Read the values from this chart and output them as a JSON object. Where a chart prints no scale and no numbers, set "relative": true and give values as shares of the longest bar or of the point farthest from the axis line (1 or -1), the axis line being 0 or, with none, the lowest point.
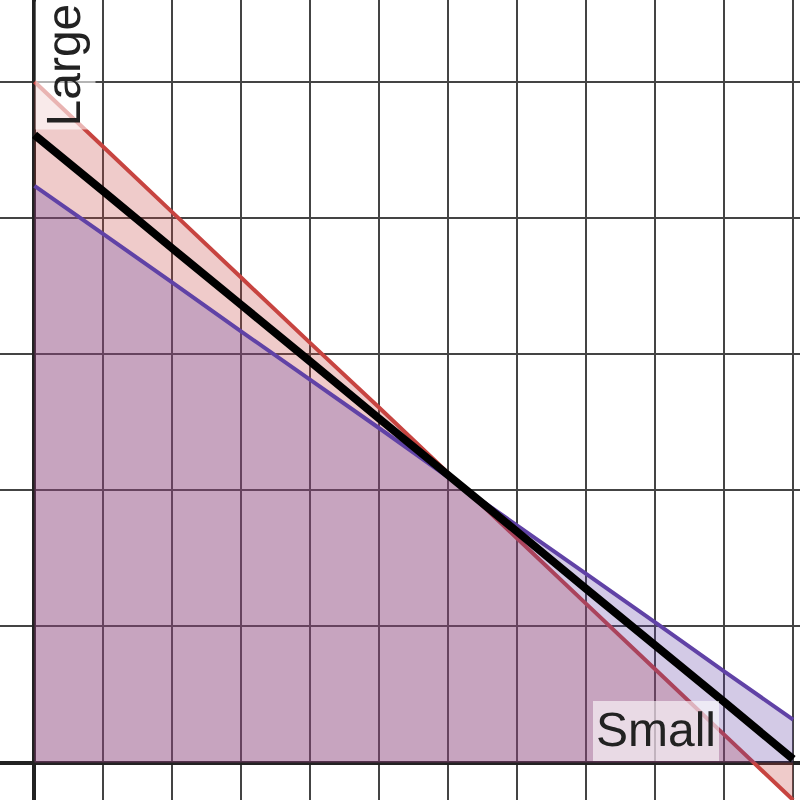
{
  "chart_data": {
    "type": "line",
    "relative": true,
    "xlabel": "Small",
    "ylabel": "Large",
    "categories": [
      null,
      null,
      null,
      null,
      null,
      null,
      null,
      null,
      null,
      null,
      null,
      null
    ],
    "grid": true,
    "series": [
      {
        "type": "area",
        "color": "#c74440",
        "values": [
          1,
          0.904,
          0.808,
          0.712,
          0.616,
          0.521,
          0.425,
          0.329,
          0.233,
          0.137,
          0.041,
          -0.055
        ]
      },
      {
        "type": "area",
        "color": "#6042a6",
        "values": [
          0.847,
          0.776,
          0.705,
          0.633,
          0.562,
          0.491,
          0.419,
          0.348,
          0.277,
          0.206,
          0.134,
          0.063
        ]
      },
      {
        "color": "#000000",
        "values": [
          0.922,
          0.839,
          0.755,
          0.672,
          0.589,
          0.505,
          0.422,
          0.339,
          0.255,
          0.172,
          0.089,
          0.005
        ]
      }
    ]
  }
}
